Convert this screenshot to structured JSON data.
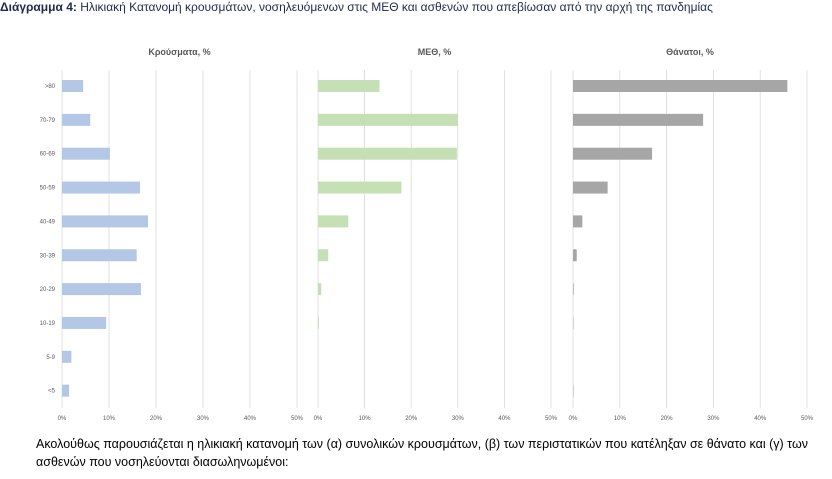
{
  "caption": {
    "label": "Διάγραμμα 4:",
    "text": "Ηλικιακή Κατανομή κρουσμάτων, νοσηλευόμενων στις ΜΕΘ και ασθενών που απεβίωσαν από την αρχή της πανδημίας"
  },
  "paragraph": "Ακολούθως παρουσιάζεται η ηλικιακή κατανομή των (α) συνολικών κρουσμάτων, (β) των περιστατικών που κατέληξαν σε θάνατο και (γ) των ασθενών που νοσηλεύονται διασωληνωμένοι:",
  "chart_data": [
    {
      "type": "bar",
      "orientation": "horizontal",
      "title": "Κρούσματα, %",
      "categories": [
        ">80",
        "70-79",
        "60-69",
        "50-59",
        "40-49",
        "30-39",
        "20-29",
        "10-19",
        "5-9",
        "<5"
      ],
      "values": [
        4.5,
        6.0,
        10.2,
        16.6,
        18.3,
        15.9,
        16.8,
        9.4,
        2.0,
        1.5
      ],
      "xlim": [
        0,
        50
      ],
      "xticks": [
        "0%",
        "10%",
        "20%",
        "30%",
        "40%",
        "50%"
      ],
      "color": "#b4c7e7",
      "grid": true
    },
    {
      "type": "bar",
      "orientation": "horizontal",
      "title": "ΜΕΘ, %",
      "categories": [
        ">80",
        "70-79",
        "60-69",
        "50-59",
        "40-49",
        "30-39",
        "20-29",
        "10-19",
        "5-9",
        "<5"
      ],
      "values": [
        13.2,
        30.0,
        29.8,
        17.9,
        6.5,
        2.2,
        0.7,
        0.2,
        0,
        0
      ],
      "xlim": [
        0,
        50
      ],
      "xticks": [
        "0%",
        "10%",
        "20%",
        "30%",
        "40%",
        "50%"
      ],
      "color": "#c5e0b4",
      "grid": true
    },
    {
      "type": "bar",
      "orientation": "horizontal",
      "title": "Θάνατοι, %",
      "categories": [
        ">80",
        "70-79",
        "60-69",
        "50-59",
        "40-49",
        "30-39",
        "20-29",
        "10-19",
        "5-9",
        "<5"
      ],
      "values": [
        45.8,
        27.8,
        16.9,
        7.4,
        2.0,
        0.8,
        0.15,
        0.1,
        0,
        0.1
      ],
      "xlim": [
        0,
        50
      ],
      "xticks": [
        "0%",
        "10%",
        "20%",
        "30%",
        "40%",
        "50%"
      ],
      "color": "#a6a6a6",
      "grid": true
    }
  ]
}
